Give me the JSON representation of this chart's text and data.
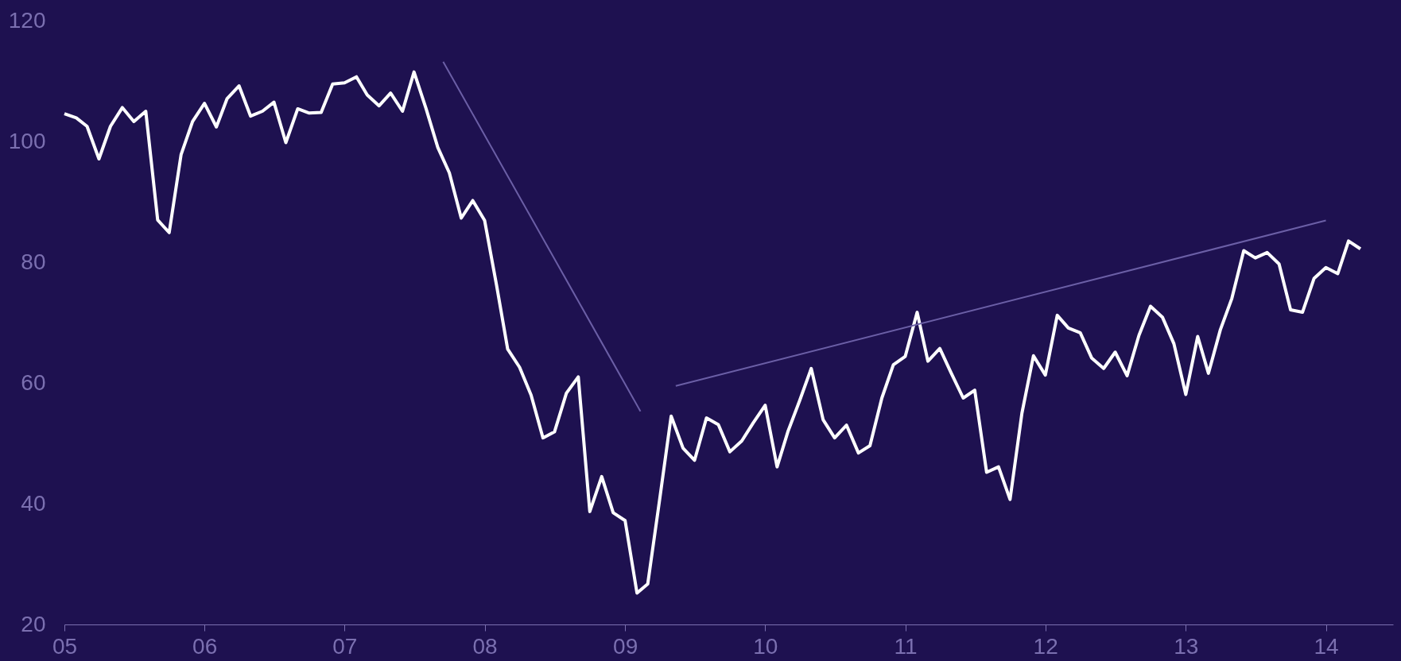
{
  "chart_data": {
    "type": "line",
    "x": [
      "2005-01",
      "2005-02",
      "2005-03",
      "2005-04",
      "2005-05",
      "2005-06",
      "2005-07",
      "2005-08",
      "2005-09",
      "2005-10",
      "2005-11",
      "2005-12",
      "2006-01",
      "2006-02",
      "2006-03",
      "2006-04",
      "2006-05",
      "2006-06",
      "2006-07",
      "2006-08",
      "2006-09",
      "2006-10",
      "2006-11",
      "2006-12",
      "2007-01",
      "2007-02",
      "2007-03",
      "2007-04",
      "2007-05",
      "2007-06",
      "2007-07",
      "2007-08",
      "2007-09",
      "2007-10",
      "2007-11",
      "2007-12",
      "2008-01",
      "2008-02",
      "2008-03",
      "2008-04",
      "2008-05",
      "2008-06",
      "2008-07",
      "2008-08",
      "2008-09",
      "2008-10",
      "2008-11",
      "2008-12",
      "2009-01",
      "2009-02",
      "2009-03",
      "2009-04",
      "2009-05",
      "2009-06",
      "2009-07",
      "2009-08",
      "2009-09",
      "2009-10",
      "2009-11",
      "2009-12",
      "2010-01",
      "2010-02",
      "2010-03",
      "2010-04",
      "2010-05",
      "2010-06",
      "2010-07",
      "2010-08",
      "2010-09",
      "2010-10",
      "2010-11",
      "2010-12",
      "2011-01",
      "2011-02",
      "2011-03",
      "2011-04",
      "2011-05",
      "2011-06",
      "2011-07",
      "2011-08",
      "2011-09",
      "2011-10",
      "2011-11",
      "2011-12",
      "2012-01",
      "2012-02",
      "2012-03",
      "2012-04",
      "2012-05",
      "2012-06",
      "2012-07",
      "2012-08",
      "2012-09",
      "2012-10",
      "2012-11",
      "2012-12",
      "2013-01",
      "2013-02",
      "2013-03",
      "2013-04",
      "2013-05",
      "2013-06",
      "2013-07",
      "2013-08",
      "2013-09",
      "2013-10",
      "2013-11",
      "2013-12",
      "2014-01",
      "2014-02",
      "2014-03",
      "2014-04"
    ],
    "series": [
      {
        "color": "#ffffff",
        "values": [
          104.6,
          103.9,
          102.5,
          97.1,
          102.5,
          105.6,
          103.3,
          105.0,
          87.0,
          84.9,
          97.8,
          103.3,
          106.3,
          102.4,
          107.1,
          109.2,
          104.2,
          105.0,
          106.5,
          99.8,
          105.4,
          104.7,
          104.8,
          109.5,
          109.7,
          110.7,
          107.7,
          105.9,
          108.0,
          105.0,
          111.5,
          105.5,
          99.0,
          94.8,
          87.3,
          90.2,
          86.9,
          76.2,
          65.6,
          62.6,
          58.0,
          50.9,
          51.9,
          58.3,
          61.0,
          38.7,
          44.5,
          38.5,
          37.2,
          25.2,
          26.7,
          40.7,
          54.5,
          49.2,
          47.2,
          54.2,
          53.1,
          48.6,
          50.4,
          53.4,
          56.3,
          46.1,
          51.9,
          57.1,
          62.4,
          53.9,
          50.9,
          53.0,
          48.4,
          49.6,
          57.5,
          63.0,
          64.4,
          71.7,
          63.6,
          65.7,
          61.6,
          57.5,
          58.8,
          45.2,
          46.1,
          40.7,
          55.0,
          64.5,
          61.3,
          71.2,
          69.1,
          68.3,
          64.1,
          62.4,
          65.1,
          61.2,
          67.9,
          72.7,
          70.9,
          66.5,
          58.1,
          67.7,
          61.6,
          68.8,
          74.0,
          81.9,
          80.7,
          81.6,
          79.7,
          72.1,
          71.7,
          77.3,
          79.1,
          78.1,
          83.5,
          82.2
        ]
      },
      {
        "type": "line",
        "color": "#6b5fa6",
        "x": [
          "2007-09-15",
          "2009-02-10"
        ],
        "values": [
          113.2,
          55.3
        ]
      },
      {
        "type": "line",
        "color": "#6b5fa6",
        "x": [
          "2009-05-13",
          "2014-01-01"
        ],
        "values": [
          59.5,
          86.9
        ]
      }
    ],
    "xlim": [
      "2005-01",
      "2014-06-25"
    ],
    "xticks": [
      {
        "value": "2005-01",
        "label": "05"
      },
      {
        "value": "2006-01",
        "label": "06"
      },
      {
        "value": "2007-01",
        "label": "07"
      },
      {
        "value": "2008-01",
        "label": "08"
      },
      {
        "value": "2009-01",
        "label": "09"
      },
      {
        "value": "2010-01",
        "label": "10"
      },
      {
        "value": "2011-01",
        "label": "11"
      },
      {
        "value": "2012-01",
        "label": "12"
      },
      {
        "value": "2013-01",
        "label": "13"
      },
      {
        "value": "2014-01",
        "label": "14"
      }
    ],
    "ylim": [
      20,
      120
    ],
    "yticks": [
      20,
      40,
      60,
      80,
      100,
      120
    ],
    "grid": false,
    "marker": "none",
    "line_style": "solid"
  }
}
